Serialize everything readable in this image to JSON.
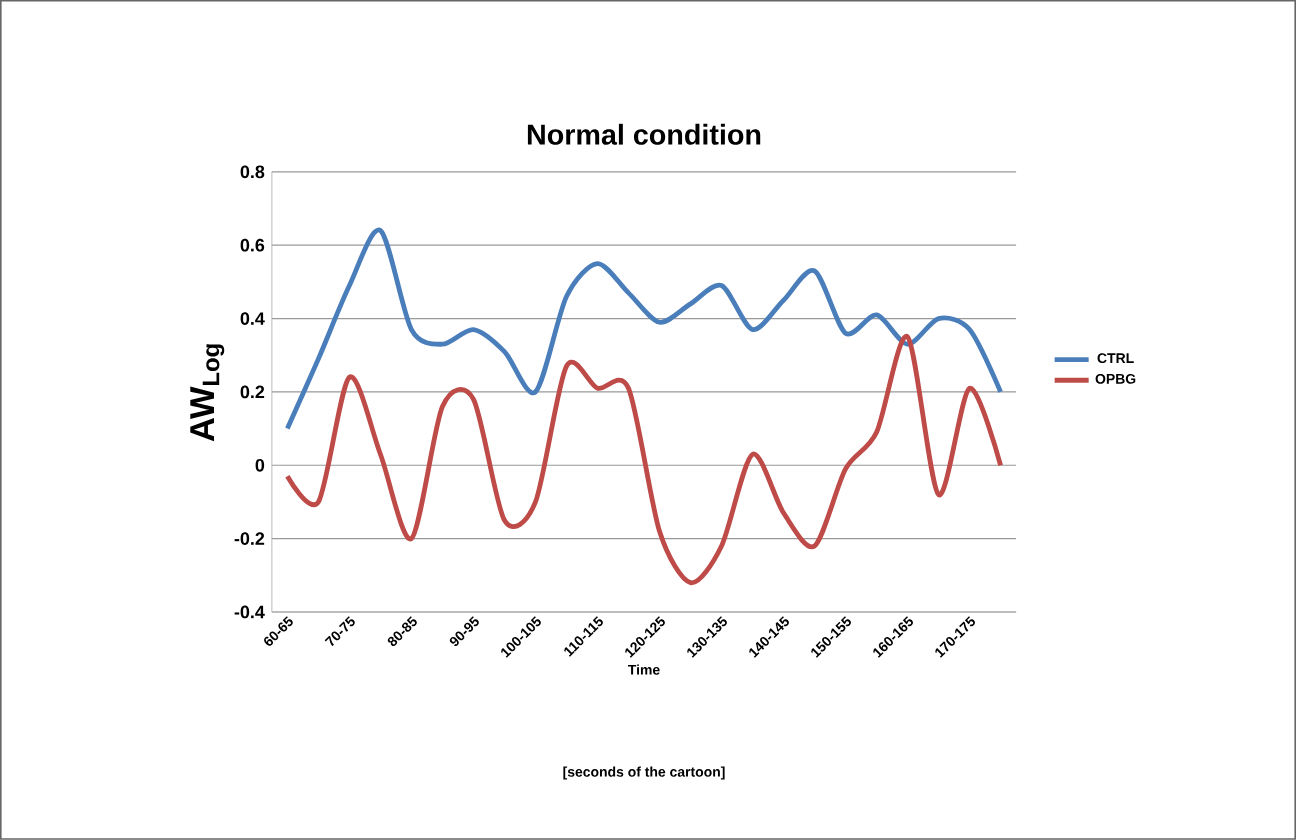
{
  "chart_data": {
    "type": "line",
    "title": "Normal condition",
    "xlabel": "Time",
    "ylabel": "AW$_{Log}$",
    "annotations": [
      "[seconds of the cartoon]"
    ],
    "categories": [
      "60-65",
      null,
      "70-75",
      null,
      "80-85",
      null,
      "90-95",
      null,
      "100-105",
      null,
      "110-115",
      null,
      "120-125",
      null,
      "130-135",
      null,
      "140-145",
      null,
      "150-155",
      null,
      "160-165",
      null,
      "170-175",
      null
    ],
    "series": [
      {
        "name": "CTRL",
        "color": "#4a7ebb",
        "values": [
          0.1,
          0.29,
          0.49,
          0.64,
          0.37,
          0.33,
          0.37,
          0.31,
          0.2,
          0.46,
          0.55,
          0.47,
          0.39,
          0.44,
          0.49,
          0.37,
          0.45,
          0.53,
          0.36,
          0.41,
          0.33,
          0.4,
          0.37,
          0.2
        ]
      },
      {
        "name": "OPBG",
        "color": "#be4b48",
        "values": [
          -0.03,
          -0.1,
          0.24,
          0.03,
          -0.2,
          0.16,
          0.18,
          -0.15,
          -0.1,
          0.27,
          0.21,
          0.21,
          -0.18,
          -0.32,
          -0.22,
          0.03,
          -0.13,
          -0.22,
          -0.01,
          0.09,
          0.35,
          -0.08,
          0.21,
          0.0
        ]
      }
    ],
    "ylim": [
      -0.4,
      0.8
    ],
    "yticks": [
      -0.4,
      -0.2,
      0,
      0.2,
      0.4,
      0.6,
      0.8
    ],
    "grid": "y",
    "legend": "right"
  }
}
